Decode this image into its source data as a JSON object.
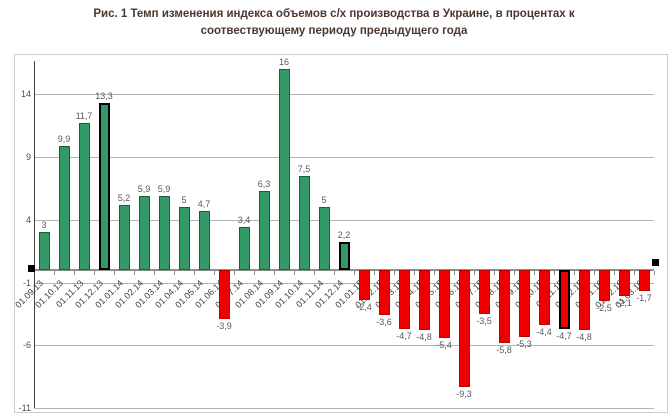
{
  "title": {
    "line1": "Рис. 1 Темп изменения индекса объемов с/х производства в Украине, в процентах к",
    "line2": "соотвествующему периоду предыдущего года"
  },
  "chart_data": {
    "type": "bar",
    "title": "Рис. 1 Темп изменения индекса объемов с/х производства в Украине, в процентах к соотвествующему периоду предыдущего года",
    "categories": [
      "01.09.13",
      "01.10.13",
      "01.11.13",
      "01.12.13",
      "01.01.14",
      "01.02.14",
      "01.03.14",
      "01.04.14",
      "01.05.14",
      "01.06.14",
      "01.07.14",
      "01.08.14",
      "01.09.14",
      "01.10.14",
      "01.11.14",
      "01.12.14",
      "01.01.15",
      "01.02.15",
      "01.03.15",
      "01.04.15",
      "01.05.15",
      "01.06.15",
      "01.07.15",
      "01.08.15",
      "01.09.15",
      "01.10.15",
      "01.11.15",
      "01.12.15",
      "01.01.16",
      "01.02.16",
      "01.03.16"
    ],
    "values": [
      3,
      9.9,
      11.7,
      13.3,
      5.2,
      5.9,
      5.9,
      5,
      4.7,
      -3.9,
      3.4,
      6.3,
      16,
      7.5,
      5,
      2.2,
      -2.4,
      -3.6,
      -4.7,
      -4.8,
      -5.4,
      -9.3,
      -3.5,
      -5.8,
      -5.3,
      -4.4,
      -4.7,
      -4.8,
      -2.5,
      -2.1,
      -1.7
    ],
    "value_labels": [
      "3",
      "9,9",
      "11,7",
      "13,3",
      "5,2",
      "5,9",
      "5,9",
      "5",
      "4,7",
      "-3,9",
      "3,4",
      "6,3",
      "16",
      "7,5",
      "5",
      "2,2",
      "-2,4",
      "-3,6",
      "-4,7",
      "-4,8",
      "-5,4",
      "-9,3",
      "-3,5",
      "-5,8",
      "-5,3",
      "-4,4",
      "-4,7",
      "-4,8",
      "-2,5",
      "-2,1",
      "-1,7"
    ],
    "highlighted_indices": [
      3,
      15,
      26
    ],
    "highlighted_categories": [
      "01.12.13",
      "01.12.14",
      "01.11.15"
    ],
    "y_ticks": [
      14,
      9,
      4,
      -1,
      -6,
      -11
    ],
    "ylim": [
      -11,
      16.5
    ],
    "xlabel": "",
    "ylabel": "",
    "grid": true,
    "legend": false,
    "colors": {
      "positive_fill": "#339966",
      "positive_border": "#1e5c3d",
      "negative_fill": "#ee0000",
      "negative_border": "#c40000",
      "highlight_border": "#000000",
      "gridline": "#b3b3b3",
      "zero_axis": "#8f8f8f",
      "y_axis": "#404040",
      "value_label": "#595959",
      "tick_label": "#404040"
    }
  }
}
